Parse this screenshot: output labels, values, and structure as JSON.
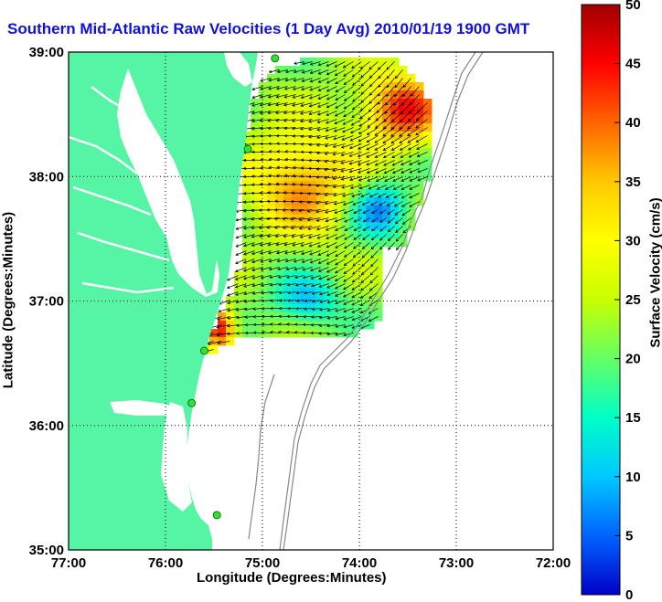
{
  "title": "Southern Mid-Atlantic Raw Velocities (1 Day Avg) 2010/01/19 1900 GMT",
  "x_axis": {
    "label": "Longitude (Degrees:Minutes)",
    "ticks": [
      "77:00",
      "76:00",
      "75:00",
      "74:00",
      "73:00",
      "72:00"
    ]
  },
  "y_axis": {
    "label": "Latitude (Degrees:Minutes)",
    "ticks": [
      "39:00",
      "38:00",
      "37:00",
      "36:00",
      "35:00"
    ]
  },
  "colorbar": {
    "label": "Surface Velocity (cm/s)",
    "ticks": [
      "50",
      "45",
      "40",
      "35",
      "30",
      "25",
      "20",
      "15",
      "10",
      "5",
      "0"
    ],
    "range": [
      0,
      50
    ],
    "colormap": [
      "#0000c8",
      "#0064ff",
      "#00c8ff",
      "#00ffc8",
      "#64ff64",
      "#c8ff00",
      "#ffff00",
      "#ffc800",
      "#ff6400",
      "#ff0000",
      "#a00000"
    ]
  },
  "map": {
    "land_color": "#55f5a5",
    "ocean_color": "#ffffff",
    "grid": "dotted",
    "lon_range": [
      -77,
      -72
    ],
    "lat_range": [
      35,
      39
    ],
    "stations": [
      {
        "lon": -74.87,
        "lat": 38.95
      },
      {
        "lon": -75.15,
        "lat": 38.22
      },
      {
        "lon": -75.6,
        "lat": 36.6
      },
      {
        "lon": -75.73,
        "lat": 36.18
      },
      {
        "lon": -75.47,
        "lat": 35.28
      }
    ]
  }
}
